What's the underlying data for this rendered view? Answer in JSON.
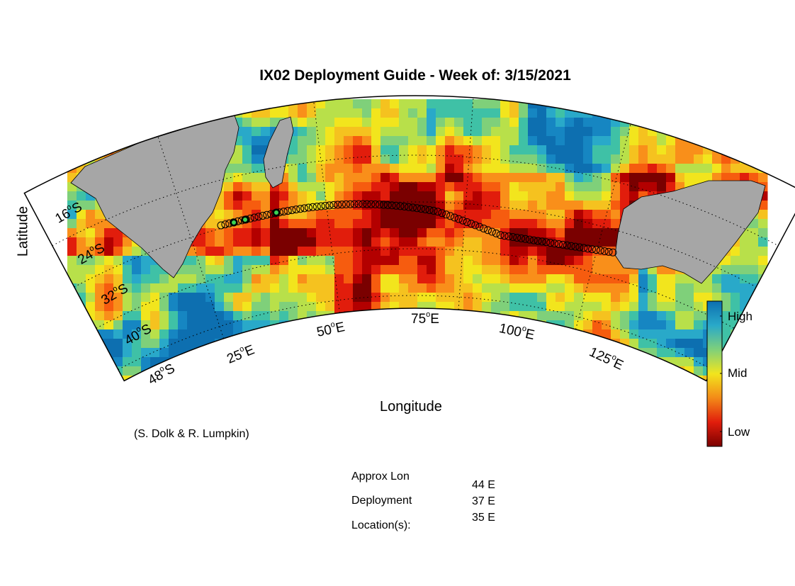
{
  "title": "IX02 Deployment Guide - Week of: 3/15/2021",
  "axes": {
    "ylabel": "Latitude",
    "xlabel": "Longitude"
  },
  "lat_labels": [
    "16",
    "24",
    "32",
    "40",
    "48"
  ],
  "lat_suffix": "S",
  "lon_labels": [
    "25",
    "50",
    "75",
    "100",
    "125"
  ],
  "lon_suffix": "E",
  "degree_symbol": "o",
  "credit": "(S. Dolk & R. Lumpkin)",
  "colorbar": {
    "labels": [
      "High",
      "Mid",
      "Low"
    ],
    "colors": [
      "#0d6fb0",
      "#29a9c9",
      "#7fd07a",
      "#f2e51d",
      "#f38a18",
      "#e11d0c",
      "#7a0000"
    ]
  },
  "deployment": {
    "label_line1": "Approx Lon",
    "label_line2": "Deployment",
    "label_line3": "Location(s):",
    "locations": [
      "44 E",
      "37 E",
      "35 E"
    ]
  },
  "map": {
    "projection": "conic sector",
    "land_color": "#a6a6a6",
    "ocean_colors": {
      "low": "#7a0000",
      "mid": "#f2e51d",
      "high": "#0d6fb0"
    },
    "track_marker": "open circles along transect from southern Africa to western Australia",
    "deployment_marker_color": "#39d353"
  }
}
